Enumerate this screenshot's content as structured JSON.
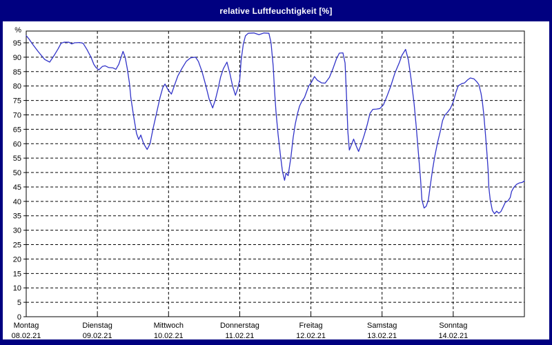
{
  "window": {
    "title": "relative Luftfeuchtigkeit [%]"
  },
  "colors": {
    "frame": "#000080",
    "title_text": "#ffffff",
    "plot_background": "#ffffff",
    "grid": "#000000",
    "axis": "#000000",
    "label_text": "#000000",
    "line": "#3032c8"
  },
  "chart_data": {
    "type": "line",
    "title": "relative Luftfeuchtigkeit [%]",
    "ylabel": "%",
    "xlabel": "",
    "ylim": [
      0,
      99
    ],
    "ytick_step": 5,
    "ytick_labels": [
      0,
      5,
      10,
      15,
      20,
      25,
      30,
      35,
      40,
      45,
      50,
      55,
      60,
      65,
      70,
      75,
      80,
      85,
      90,
      95
    ],
    "grid": true,
    "legend_position": "none",
    "x_unit": "days since Montag 08.02.21 00:00",
    "days": [
      {
        "name": "Montag",
        "date": "08.02.21"
      },
      {
        "name": "Dienstag",
        "date": "09.02.21"
      },
      {
        "name": "Mittwoch",
        "date": "10.02.21"
      },
      {
        "name": "Donnerstag",
        "date": "11.02.21"
      },
      {
        "name": "Freitag",
        "date": "12.02.21"
      },
      {
        "name": "Samstag",
        "date": "13.02.21"
      },
      {
        "name": "Sonntag",
        "date": "14.02.21"
      }
    ],
    "series": [
      {
        "name": "relative Luftfeuchtigkeit",
        "unit": "%",
        "points": [
          [
            0.0,
            97.5
          ],
          [
            0.04,
            96.3
          ],
          [
            0.09,
            94.5
          ],
          [
            0.17,
            91.9
          ],
          [
            0.26,
            89.2
          ],
          [
            0.33,
            88.3
          ],
          [
            0.39,
            90.5
          ],
          [
            0.45,
            93.0
          ],
          [
            0.49,
            94.8
          ],
          [
            0.53,
            95.2
          ],
          [
            0.6,
            95.2
          ],
          [
            0.64,
            94.6
          ],
          [
            0.68,
            95.0
          ],
          [
            0.75,
            95.1
          ],
          [
            0.8,
            94.8
          ],
          [
            0.85,
            92.8
          ],
          [
            0.91,
            90.0
          ],
          [
            0.95,
            87.5
          ],
          [
            0.98,
            86.4
          ],
          [
            1.02,
            85.6
          ],
          [
            1.07,
            86.8
          ],
          [
            1.11,
            87.0
          ],
          [
            1.16,
            86.4
          ],
          [
            1.22,
            86.3
          ],
          [
            1.26,
            85.8
          ],
          [
            1.3,
            87.5
          ],
          [
            1.34,
            90.5
          ],
          [
            1.36,
            92.0
          ],
          [
            1.39,
            90.0
          ],
          [
            1.42,
            86.0
          ],
          [
            1.45,
            81.0
          ],
          [
            1.47,
            76.0
          ],
          [
            1.51,
            69.5
          ],
          [
            1.55,
            63.5
          ],
          [
            1.58,
            61.5
          ],
          [
            1.61,
            63.0
          ],
          [
            1.65,
            60.0
          ],
          [
            1.7,
            58.0
          ],
          [
            1.74,
            60.0
          ],
          [
            1.78,
            65.0
          ],
          [
            1.83,
            70.5
          ],
          [
            1.88,
            76.0
          ],
          [
            1.92,
            79.5
          ],
          [
            1.95,
            80.7
          ],
          [
            1.99,
            78.8
          ],
          [
            2.04,
            77.2
          ],
          [
            2.08,
            80.0
          ],
          [
            2.13,
            83.5
          ],
          [
            2.19,
            86.2
          ],
          [
            2.25,
            88.6
          ],
          [
            2.31,
            89.8
          ],
          [
            2.38,
            90.0
          ],
          [
            2.42,
            88.5
          ],
          [
            2.47,
            85.0
          ],
          [
            2.52,
            80.5
          ],
          [
            2.57,
            75.5
          ],
          [
            2.62,
            72.4
          ],
          [
            2.66,
            75.5
          ],
          [
            2.7,
            79.5
          ],
          [
            2.73,
            83.0
          ],
          [
            2.77,
            86.0
          ],
          [
            2.82,
            88.3
          ],
          [
            2.86,
            84.5
          ],
          [
            2.9,
            80.0
          ],
          [
            2.94,
            76.8
          ],
          [
            2.97,
            79.0
          ],
          [
            3.0,
            82.0
          ],
          [
            3.02,
            89.0
          ],
          [
            3.05,
            94.5
          ],
          [
            3.08,
            97.4
          ],
          [
            3.12,
            98.3
          ],
          [
            3.2,
            98.4
          ],
          [
            3.27,
            97.8
          ],
          [
            3.34,
            98.4
          ],
          [
            3.41,
            98.3
          ],
          [
            3.44,
            95.0
          ],
          [
            3.47,
            87.0
          ],
          [
            3.49,
            78.0
          ],
          [
            3.51,
            71.0
          ],
          [
            3.54,
            63.0
          ],
          [
            3.57,
            56.5
          ],
          [
            3.6,
            50.5
          ],
          [
            3.63,
            47.3
          ],
          [
            3.65,
            49.8
          ],
          [
            3.68,
            48.9
          ],
          [
            3.72,
            55.5
          ],
          [
            3.75,
            62.0
          ],
          [
            3.78,
            66.8
          ],
          [
            3.81,
            70.3
          ],
          [
            3.84,
            73.0
          ],
          [
            3.87,
            74.6
          ],
          [
            3.91,
            76.0
          ],
          [
            3.95,
            78.7
          ],
          [
            3.97,
            80.0
          ],
          [
            4.01,
            81.4
          ],
          [
            4.05,
            83.3
          ],
          [
            4.09,
            82.0
          ],
          [
            4.15,
            81.1
          ],
          [
            4.2,
            81.0
          ],
          [
            4.26,
            83.0
          ],
          [
            4.31,
            86.0
          ],
          [
            4.36,
            89.5
          ],
          [
            4.4,
            91.4
          ],
          [
            4.45,
            91.5
          ],
          [
            4.48,
            88.0
          ],
          [
            4.5,
            77.0
          ],
          [
            4.52,
            64.0
          ],
          [
            4.54,
            57.8
          ],
          [
            4.58,
            60.3
          ],
          [
            4.6,
            61.6
          ],
          [
            4.64,
            59.0
          ],
          [
            4.67,
            57.3
          ],
          [
            4.71,
            60.0
          ],
          [
            4.75,
            63.0
          ],
          [
            4.79,
            66.5
          ],
          [
            4.83,
            70.5
          ],
          [
            4.87,
            71.9
          ],
          [
            4.92,
            72.0
          ],
          [
            4.97,
            72.2
          ],
          [
            5.02,
            73.5
          ],
          [
            5.07,
            76.5
          ],
          [
            5.12,
            79.8
          ],
          [
            5.18,
            84.5
          ],
          [
            5.24,
            88.0
          ],
          [
            5.28,
            90.7
          ],
          [
            5.33,
            92.7
          ],
          [
            5.37,
            89.0
          ],
          [
            5.41,
            82.0
          ],
          [
            5.45,
            74.0
          ],
          [
            5.48,
            66.0
          ],
          [
            5.51,
            57.0
          ],
          [
            5.54,
            48.0
          ],
          [
            5.56,
            40.5
          ],
          [
            5.59,
            37.7
          ],
          [
            5.62,
            38.3
          ],
          [
            5.65,
            40.5
          ],
          [
            5.68,
            46.0
          ],
          [
            5.71,
            51.0
          ],
          [
            5.74,
            55.5
          ],
          [
            5.78,
            60.5
          ],
          [
            5.82,
            64.5
          ],
          [
            5.85,
            68.0
          ],
          [
            5.88,
            69.8
          ],
          [
            5.92,
            70.9
          ],
          [
            5.96,
            72.2
          ],
          [
            6.0,
            74.5
          ],
          [
            6.04,
            78.0
          ],
          [
            6.07,
            80.1
          ],
          [
            6.12,
            80.8
          ],
          [
            6.16,
            81.1
          ],
          [
            6.2,
            82.1
          ],
          [
            6.24,
            82.8
          ],
          [
            6.29,
            82.5
          ],
          [
            6.33,
            81.5
          ],
          [
            6.36,
            80.5
          ],
          [
            6.39,
            77.5
          ],
          [
            6.41,
            74.5
          ],
          [
            6.43,
            70.0
          ],
          [
            6.45,
            64.0
          ],
          [
            6.47,
            58.0
          ],
          [
            6.49,
            51.0
          ],
          [
            6.5,
            45.0
          ],
          [
            6.52,
            40.5
          ],
          [
            6.55,
            36.8
          ],
          [
            6.58,
            35.7
          ],
          [
            6.61,
            36.6
          ],
          [
            6.64,
            35.9
          ],
          [
            6.67,
            36.5
          ],
          [
            6.7,
            38.0
          ],
          [
            6.73,
            39.6
          ],
          [
            6.77,
            40.2
          ],
          [
            6.8,
            41.3
          ],
          [
            6.82,
            43.4
          ],
          [
            6.85,
            44.8
          ],
          [
            6.89,
            45.9
          ],
          [
            6.93,
            46.4
          ],
          [
            6.97,
            46.6
          ],
          [
            7.0,
            47.1
          ]
        ]
      }
    ]
  }
}
